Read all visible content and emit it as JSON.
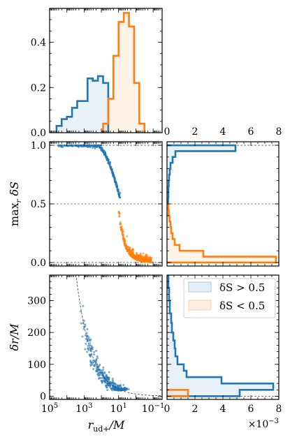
{
  "chart_data": {
    "type": "corner-histogram-scatter",
    "colors": {
      "large": "#1f77b4",
      "small": "#ff7f0e",
      "guide": "#666666"
    },
    "legend": {
      "position": "upper-right of lower-right panel",
      "entries": [
        "δS > 0.5",
        "δS < 0.5"
      ]
    },
    "xaxis": {
      "label": "r_ud+/M",
      "scale": "log",
      "direction": "reversed",
      "xlim": [
        100000,
        0.03
      ],
      "ticks": [
        100000,
        1000,
        10,
        0.1
      ],
      "tick_labels": [
        "10^5",
        "10^3",
        "10^1",
        "10^-1"
      ]
    },
    "yaxis_mid": {
      "label": "max_r δS",
      "ylim": [
        -0.03,
        1.03
      ],
      "ticks": [
        0,
        0.5,
        1
      ],
      "tick_labels": [
        "0.0",
        "0.5",
        "1.0"
      ]
    },
    "yaxis_bottom": {
      "label": "δr/M",
      "ylim": [
        -10,
        380
      ],
      "ticks": [
        0,
        100,
        200,
        300
      ],
      "tick_labels": [
        "0",
        "100",
        "200",
        "300"
      ]
    },
    "top_hist": {
      "ylim": [
        0,
        0.55
      ],
      "ticks": [
        0,
        0.2,
        0.4
      ],
      "tick_labels": [
        "0.0",
        "0.2",
        "0.4"
      ],
      "edges_log10": [
        4.6,
        4.3,
        4.0,
        3.7,
        3.4,
        3.1,
        2.8,
        2.5,
        2.2,
        1.9,
        1.6,
        1.3,
        1.0,
        0.7,
        0.4,
        0.1,
        -0.2,
        -0.5
      ],
      "large": [
        0.03,
        0.06,
        0.07,
        0.11,
        0.14,
        0.14,
        0.24,
        0.23,
        0.25,
        0.22,
        0.0,
        0.0,
        0.0,
        0.0,
        0.0,
        0.0,
        0.0
      ],
      "small": [
        0.0,
        0.0,
        0.0,
        0.0,
        0.0,
        0.0,
        0.0,
        0.0,
        0.0,
        0.04,
        0.15,
        0.34,
        0.49,
        0.53,
        0.47,
        0.22,
        0.04
      ]
    },
    "side_xaxis": {
      "xlim": [
        0,
        8
      ],
      "ticks": [
        0,
        2,
        4,
        6,
        8
      ],
      "tick_labels": [
        "0",
        "2",
        "4",
        "6",
        "8"
      ],
      "multiplier": "×10^-3"
    },
    "mid_hist": {
      "edges": [
        1.0,
        0.95,
        0.9,
        0.85,
        0.8,
        0.75,
        0.7,
        0.65,
        0.6,
        0.55,
        0.5,
        0.45,
        0.4,
        0.35,
        0.3,
        0.25,
        0.2,
        0.15,
        0.1,
        0.05,
        0.0
      ],
      "large": [
        4.9,
        0.6,
        0.4,
        0.25,
        0.2,
        0.15,
        0.12,
        0.1,
        0.1,
        0.08,
        0.0,
        0.0,
        0.0,
        0.0,
        0.0,
        0.0,
        0.0,
        0.0,
        0.0,
        0.0
      ],
      "small": [
        0.0,
        0.0,
        0.0,
        0.0,
        0.0,
        0.0,
        0.0,
        0.0,
        0.0,
        0.0,
        0.1,
        0.12,
        0.18,
        0.25,
        0.3,
        0.4,
        0.55,
        0.9,
        2.6,
        7.8
      ]
    },
    "bottom_hist": {
      "edges": [
        380,
        340,
        300,
        260,
        230,
        200,
        175,
        150,
        125,
        100,
        80,
        60,
        40,
        20,
        0
      ],
      "large": [
        0.1,
        0.15,
        0.2,
        0.3,
        0.35,
        0.45,
        0.55,
        0.6,
        0.75,
        1.2,
        1.4,
        3.9,
        7.6,
        5.2
      ],
      "small": [
        0.0,
        0.0,
        0.0,
        0.0,
        0.0,
        0.0,
        0.0,
        0.0,
        0.0,
        0.0,
        0.0,
        0.0,
        0.0,
        1.5
      ]
    },
    "guide_curve": {
      "form": "δr = 7 * (r_ud+)^0.5",
      "style": "dashed"
    },
    "scatter_summary": {
      "mid_large": "≈350 points, δS 0.55–1.0, r_ud+ 10^4.6–10^0.9",
      "mid_small": "≈400 points, δS 0.0–0.45, r_ud+ 10^1.0–10^-0.9",
      "bottom": "≈300 points, δr 20–340, r_ud+ 10^3.3–10^0.6"
    }
  }
}
